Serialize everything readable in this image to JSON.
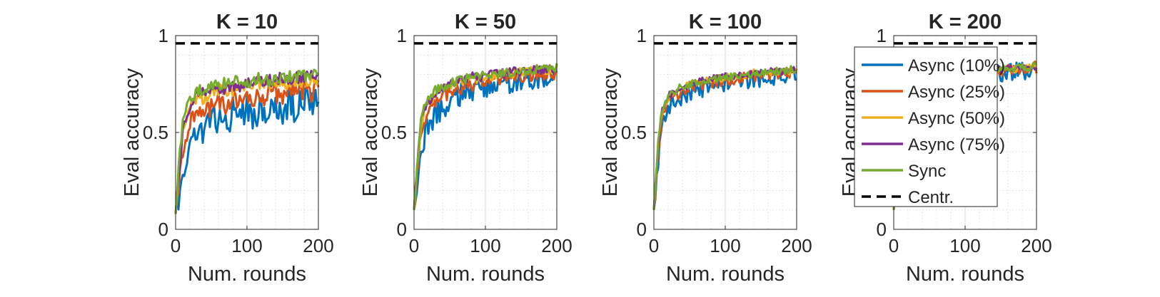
{
  "chart_data": {
    "type": "line",
    "xlabel": "Num. rounds",
    "ylabel": "Eval accuracy",
    "xlim": [
      0,
      200
    ],
    "ylim": [
      0,
      1
    ],
    "xticks": [
      0,
      100,
      200
    ],
    "yticks": [
      0,
      0.5,
      1
    ],
    "ytick_labels": [
      "0",
      "0.5",
      "1"
    ],
    "grid": "on (major and minor)",
    "legend_placement": "overlapping the K = 200 panel",
    "legend": [
      "Async (10%)",
      "Async (25%)",
      "Async (50%)",
      "Async (75%)",
      "Sync",
      "Centr."
    ],
    "series_styles": [
      {
        "name": "Async (10%)",
        "color": "#0072BD",
        "dash": "solid"
      },
      {
        "name": "Async (25%)",
        "color": "#D95319",
        "dash": "solid"
      },
      {
        "name": "Async (50%)",
        "color": "#EDB120",
        "dash": "solid"
      },
      {
        "name": "Async (75%)",
        "color": "#7E2F8E",
        "dash": "solid"
      },
      {
        "name": "Sync",
        "color": "#77AC30",
        "dash": "solid"
      },
      {
        "name": "Centr.",
        "color": "#000000",
        "dash": "dashed"
      }
    ],
    "x": [
      0,
      5,
      10,
      15,
      20,
      30,
      40,
      50,
      60,
      70,
      80,
      90,
      100,
      110,
      120,
      130,
      140,
      150,
      160,
      170,
      180,
      190,
      200
    ],
    "panels": [
      {
        "title": "K = 10",
        "series": [
          {
            "name": "Async (10%)",
            "values": [
              0.08,
              0.2,
              0.32,
              0.42,
              0.48,
              0.52,
              0.55,
              0.58,
              0.6,
              0.56,
              0.62,
              0.6,
              0.64,
              0.58,
              0.65,
              0.62,
              0.66,
              0.6,
              0.67,
              0.64,
              0.68,
              0.66,
              0.69
            ]
          },
          {
            "name": "Async (25%)",
            "values": [
              0.08,
              0.25,
              0.42,
              0.5,
              0.56,
              0.6,
              0.63,
              0.65,
              0.67,
              0.66,
              0.68,
              0.66,
              0.7,
              0.68,
              0.71,
              0.7,
              0.72,
              0.7,
              0.73,
              0.71,
              0.74,
              0.72,
              0.74
            ]
          },
          {
            "name": "Async (50%)",
            "values": [
              0.08,
              0.3,
              0.5,
              0.58,
              0.63,
              0.67,
              0.69,
              0.71,
              0.72,
              0.73,
              0.73,
              0.74,
              0.75,
              0.75,
              0.76,
              0.76,
              0.77,
              0.76,
              0.77,
              0.77,
              0.78,
              0.78,
              0.79
            ]
          },
          {
            "name": "Async (75%)",
            "values": [
              0.08,
              0.32,
              0.52,
              0.6,
              0.65,
              0.69,
              0.71,
              0.72,
              0.74,
              0.74,
              0.75,
              0.75,
              0.76,
              0.77,
              0.77,
              0.78,
              0.78,
              0.78,
              0.79,
              0.79,
              0.8,
              0.8,
              0.81
            ]
          },
          {
            "name": "Sync",
            "values": [
              0.08,
              0.35,
              0.55,
              0.63,
              0.68,
              0.71,
              0.73,
              0.74,
              0.75,
              0.76,
              0.76,
              0.77,
              0.77,
              0.78,
              0.78,
              0.78,
              0.79,
              0.79,
              0.79,
              0.79,
              0.8,
              0.8,
              0.8
            ]
          },
          {
            "name": "Centr.",
            "values": [
              0.96,
              0.96
            ]
          }
        ]
      },
      {
        "title": "K = 50",
        "series": [
          {
            "name": "Async (10%)",
            "values": [
              0.1,
              0.28,
              0.42,
              0.5,
              0.55,
              0.6,
              0.64,
              0.68,
              0.7,
              0.72,
              0.73,
              0.74,
              0.75,
              0.76,
              0.76,
              0.77,
              0.78,
              0.78,
              0.79,
              0.79,
              0.8,
              0.8,
              0.8
            ]
          },
          {
            "name": "Async (25%)",
            "values": [
              0.1,
              0.32,
              0.5,
              0.58,
              0.62,
              0.66,
              0.7,
              0.72,
              0.74,
              0.75,
              0.76,
              0.77,
              0.78,
              0.78,
              0.79,
              0.79,
              0.8,
              0.8,
              0.81,
              0.81,
              0.81,
              0.82,
              0.82
            ]
          },
          {
            "name": "Async (50%)",
            "values": [
              0.1,
              0.35,
              0.55,
              0.62,
              0.66,
              0.7,
              0.73,
              0.75,
              0.76,
              0.77,
              0.78,
              0.78,
              0.79,
              0.8,
              0.8,
              0.81,
              0.81,
              0.82,
              0.82,
              0.82,
              0.83,
              0.83,
              0.83
            ]
          },
          {
            "name": "Async (75%)",
            "values": [
              0.1,
              0.36,
              0.56,
              0.63,
              0.67,
              0.71,
              0.74,
              0.76,
              0.77,
              0.78,
              0.79,
              0.79,
              0.8,
              0.8,
              0.81,
              0.81,
              0.82,
              0.82,
              0.82,
              0.83,
              0.83,
              0.83,
              0.84
            ]
          },
          {
            "name": "Sync",
            "values": [
              0.1,
              0.37,
              0.56,
              0.64,
              0.68,
              0.72,
              0.74,
              0.76,
              0.77,
              0.78,
              0.79,
              0.79,
              0.8,
              0.8,
              0.81,
              0.81,
              0.82,
              0.82,
              0.82,
              0.83,
              0.83,
              0.83,
              0.84
            ]
          },
          {
            "name": "Centr.",
            "values": [
              0.96,
              0.96
            ]
          }
        ]
      },
      {
        "title": "K = 100",
        "series": [
          {
            "name": "Async (10%)",
            "values": [
              0.1,
              0.33,
              0.52,
              0.6,
              0.64,
              0.68,
              0.7,
              0.72,
              0.73,
              0.74,
              0.75,
              0.76,
              0.77,
              0.77,
              0.78,
              0.78,
              0.79,
              0.79,
              0.8,
              0.8,
              0.8,
              0.81,
              0.81
            ]
          },
          {
            "name": "Async (25%)",
            "values": [
              0.1,
              0.36,
              0.56,
              0.63,
              0.67,
              0.7,
              0.72,
              0.74,
              0.75,
              0.76,
              0.77,
              0.77,
              0.78,
              0.78,
              0.79,
              0.79,
              0.8,
              0.8,
              0.81,
              0.81,
              0.81,
              0.82,
              0.82
            ]
          },
          {
            "name": "Async (50%)",
            "values": [
              0.1,
              0.38,
              0.58,
              0.65,
              0.68,
              0.71,
              0.73,
              0.75,
              0.76,
              0.77,
              0.77,
              0.78,
              0.79,
              0.79,
              0.8,
              0.8,
              0.81,
              0.81,
              0.81,
              0.82,
              0.82,
              0.82,
              0.83
            ]
          },
          {
            "name": "Async (75%)",
            "values": [
              0.1,
              0.39,
              0.59,
              0.66,
              0.69,
              0.72,
              0.74,
              0.75,
              0.76,
              0.77,
              0.78,
              0.78,
              0.79,
              0.79,
              0.8,
              0.8,
              0.81,
              0.81,
              0.82,
              0.82,
              0.82,
              0.83,
              0.83
            ]
          },
          {
            "name": "Sync",
            "values": [
              0.1,
              0.4,
              0.6,
              0.66,
              0.69,
              0.72,
              0.74,
              0.75,
              0.76,
              0.77,
              0.78,
              0.78,
              0.79,
              0.79,
              0.8,
              0.8,
              0.81,
              0.81,
              0.82,
              0.82,
              0.82,
              0.83,
              0.83
            ]
          },
          {
            "name": "Centr.",
            "values": [
              0.96,
              0.96
            ]
          }
        ]
      },
      {
        "title": "K = 200",
        "series": [
          {
            "name": "Async (10%)",
            "values": [
              0.1,
              0.4,
              0.6,
              0.67,
              0.7,
              0.73,
              0.75,
              0.76,
              0.77,
              0.78,
              0.79,
              0.79,
              0.8,
              0.8,
              0.81,
              0.81,
              0.82,
              0.82,
              0.82,
              0.83,
              0.83,
              0.83,
              0.84
            ]
          },
          {
            "name": "Async (25%)",
            "values": [
              0.1,
              0.41,
              0.61,
              0.67,
              0.71,
              0.73,
              0.75,
              0.77,
              0.78,
              0.78,
              0.79,
              0.8,
              0.8,
              0.81,
              0.81,
              0.82,
              0.82,
              0.82,
              0.83,
              0.83,
              0.83,
              0.84,
              0.84
            ]
          },
          {
            "name": "Async (50%)",
            "values": [
              0.1,
              0.42,
              0.62,
              0.68,
              0.71,
              0.74,
              0.76,
              0.77,
              0.78,
              0.79,
              0.79,
              0.8,
              0.8,
              0.81,
              0.81,
              0.82,
              0.82,
              0.83,
              0.83,
              0.83,
              0.84,
              0.84,
              0.84
            ]
          },
          {
            "name": "Async (75%)",
            "values": [
              0.1,
              0.42,
              0.62,
              0.68,
              0.72,
              0.74,
              0.76,
              0.77,
              0.78,
              0.79,
              0.8,
              0.8,
              0.81,
              0.81,
              0.82,
              0.82,
              0.82,
              0.83,
              0.83,
              0.83,
              0.84,
              0.84,
              0.84
            ]
          },
          {
            "name": "Sync",
            "values": [
              0.1,
              0.43,
              0.63,
              0.69,
              0.72,
              0.74,
              0.76,
              0.77,
              0.78,
              0.79,
              0.8,
              0.8,
              0.81,
              0.81,
              0.82,
              0.82,
              0.83,
              0.83,
              0.83,
              0.84,
              0.84,
              0.84,
              0.85
            ]
          },
          {
            "name": "Centr.",
            "values": [
              0.96,
              0.96
            ]
          }
        ]
      }
    ]
  }
}
